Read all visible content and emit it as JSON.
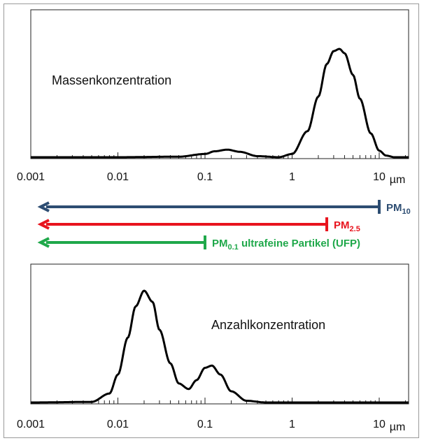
{
  "chart_data": [
    {
      "type": "line",
      "title": "",
      "annotation": "Massenkonzentration",
      "xscale": "log",
      "xlim": [
        0.001,
        20
      ],
      "xticks": [
        "0.001",
        "0.01",
        "0.1",
        "1",
        "10"
      ],
      "xunit": "µm",
      "series": [
        {
          "x": [
            0.001,
            0.01,
            0.05,
            0.1,
            0.13,
            0.18,
            0.25,
            0.4,
            0.7,
            1.0,
            1.5,
            2.0,
            2.5,
            3.0,
            3.5,
            4.0,
            5.0,
            6.0,
            8.0,
            10.0,
            12.0,
            15.0
          ],
          "y": [
            0.0,
            0.0,
            0.005,
            0.03,
            0.055,
            0.07,
            0.05,
            0.01,
            0.0,
            0.03,
            0.24,
            0.56,
            0.86,
            0.98,
            1.0,
            0.96,
            0.76,
            0.54,
            0.22,
            0.06,
            0.015,
            0.0
          ]
        }
      ]
    },
    {
      "type": "line",
      "title": "",
      "annotation": "Anzahlkonzentration",
      "xscale": "log",
      "xlim": [
        0.001,
        20
      ],
      "xticks": [
        "0.001",
        "0.01",
        "0.1",
        "1",
        "10"
      ],
      "xunit": "µm",
      "series": [
        {
          "x": [
            0.001,
            0.005,
            0.008,
            0.01,
            0.013,
            0.016,
            0.02,
            0.025,
            0.03,
            0.04,
            0.05,
            0.065,
            0.08,
            0.1,
            0.12,
            0.15,
            0.2,
            0.3,
            0.5,
            1.0,
            15.0
          ],
          "y": [
            0.0,
            0.005,
            0.08,
            0.25,
            0.58,
            0.86,
            1.0,
            0.9,
            0.65,
            0.35,
            0.17,
            0.12,
            0.2,
            0.31,
            0.33,
            0.25,
            0.1,
            0.015,
            0.0,
            0.0,
            0.0
          ]
        }
      ]
    }
  ],
  "ranges": [
    {
      "label": "PM",
      "sub": "10",
      "suffix": "",
      "color": "#2d4d72",
      "upper_um": 10
    },
    {
      "label": "PM",
      "sub": "2.5",
      "suffix": "",
      "color": "#e8141e",
      "upper_um": 2.5
    },
    {
      "label": "PM",
      "sub": "0.1",
      "suffix": " ultrafeine Partikel (UFP)",
      "color": "#1fa84a",
      "upper_um": 0.1
    }
  ]
}
